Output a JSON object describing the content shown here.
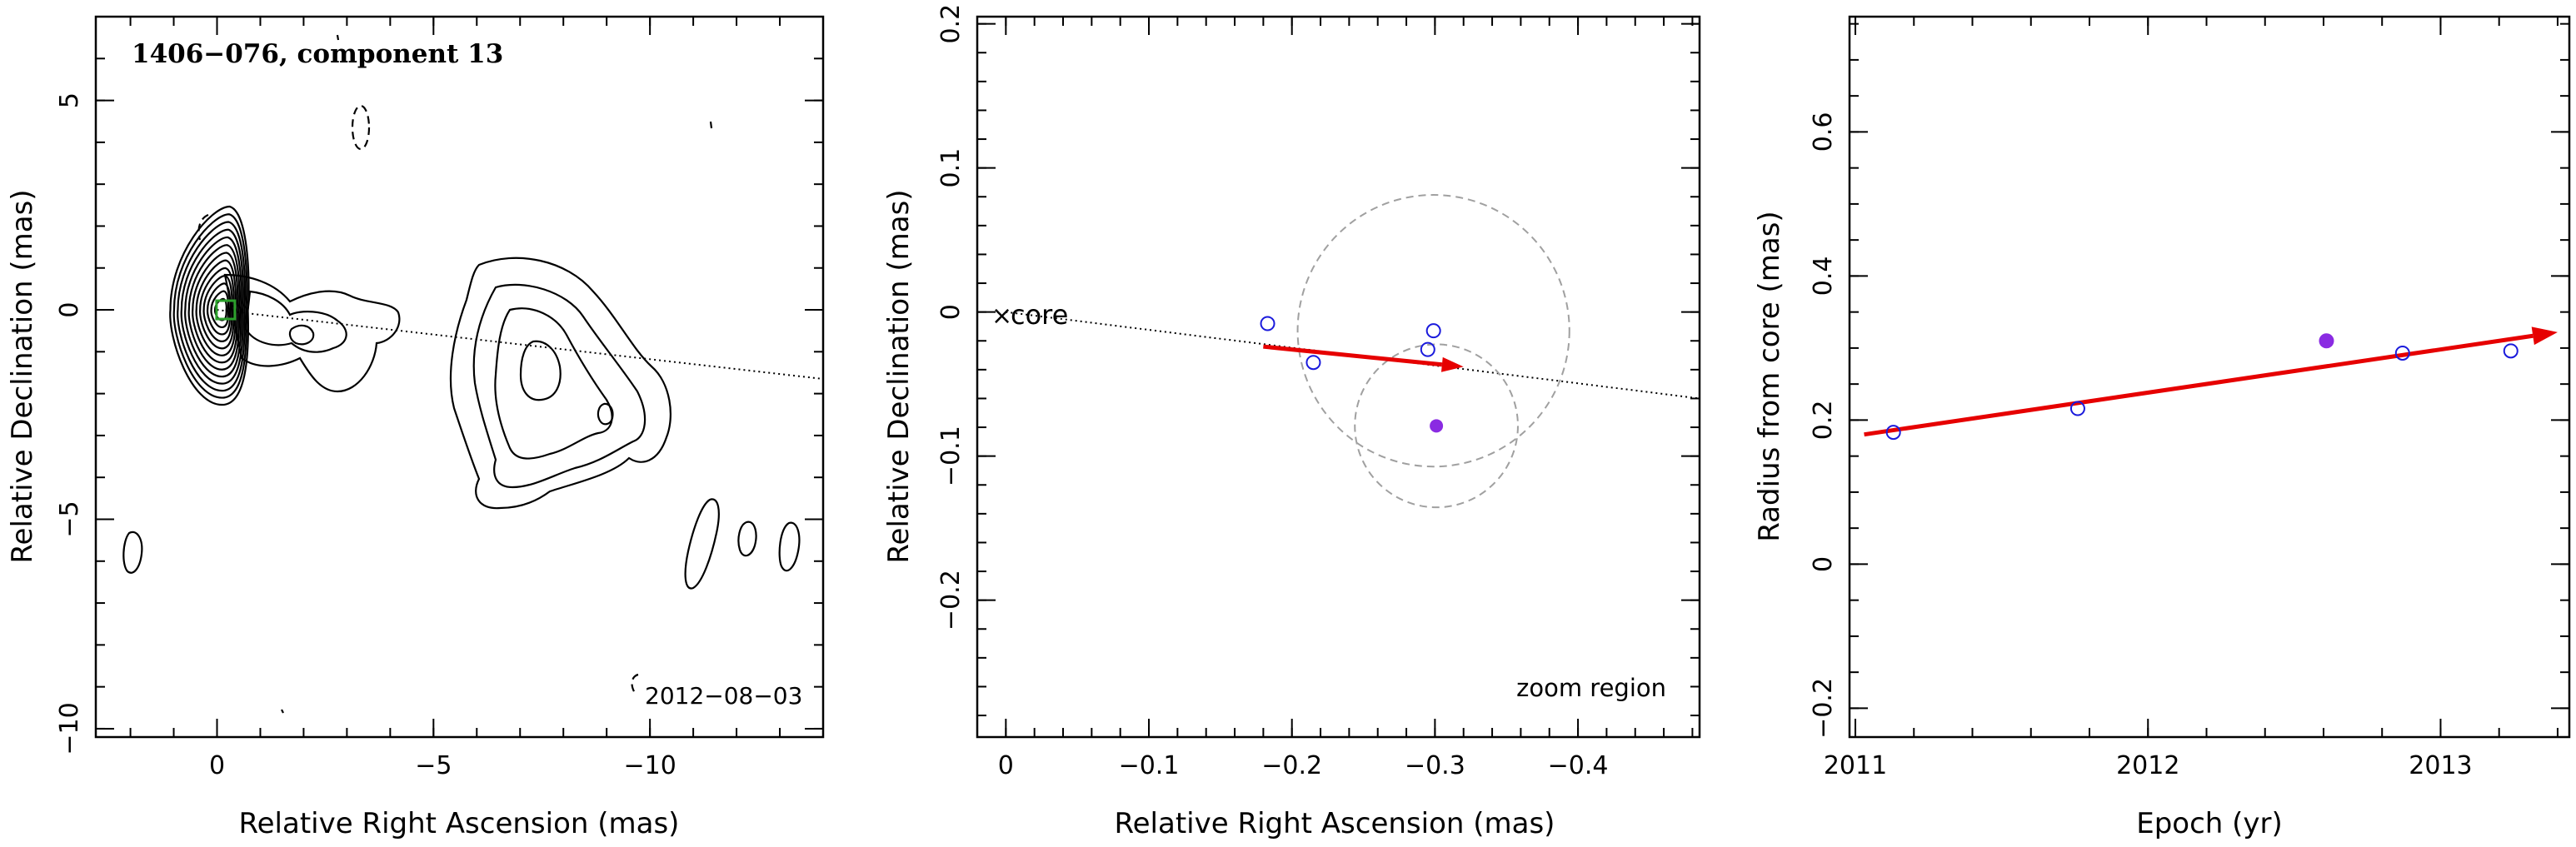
{
  "chart_data": [
    {
      "type": "contour",
      "title": "1406−076, component 13",
      "date_label": "2012−08−03",
      "xlabel": "Relative Right Ascension (mas)",
      "ylabel": "Relative Declination (mas)",
      "xlim": [
        2.8,
        -14.0
      ],
      "ylim": [
        -10.2,
        7.0
      ],
      "x_ticks": [
        0,
        -5,
        -10
      ],
      "x_tick_labels": [
        "0",
        "−5",
        "−10"
      ],
      "y_ticks": [
        5,
        0,
        -5,
        -10
      ],
      "y_tick_labels": [
        "5",
        "0",
        "−5",
        "−10"
      ],
      "core_box": {
        "x": -0.2,
        "y": 0.0
      },
      "trajectory_line": {
        "x": [
          0,
          -14.0
        ],
        "y": [
          0,
          -1.65
        ]
      },
      "colors": {
        "contour": "#000000",
        "core_box": "#2ca02c",
        "trajectory": "#000000"
      }
    },
    {
      "type": "scatter",
      "xlabel": "Relative Right Ascension (mas)",
      "ylabel": "Relative Declination (mas)",
      "annotation": "zoom region",
      "core_label": "core",
      "xlim": [
        0.02,
        -0.485
      ],
      "ylim": [
        -0.295,
        0.205
      ],
      "x_ticks": [
        0,
        -0.1,
        -0.2,
        -0.3,
        -0.4
      ],
      "x_tick_labels": [
        "0",
        "−0.1",
        "−0.2",
        "−0.3",
        "−0.4"
      ],
      "y_ticks": [
        0.2,
        0.1,
        0,
        -0.1,
        -0.2
      ],
      "y_tick_labels": [
        "0.2",
        "0.1",
        "0",
        "−0.1",
        "−0.2"
      ],
      "points_open": [
        {
          "x": -0.183,
          "y": -0.008
        },
        {
          "x": -0.215,
          "y": -0.035
        },
        {
          "x": -0.295,
          "y": -0.026
        },
        {
          "x": -0.299,
          "y": -0.013
        }
      ],
      "point_filled": {
        "x": -0.301,
        "y": -0.079
      },
      "circles": [
        {
          "x": -0.299,
          "y": -0.013,
          "r": 0.095
        },
        {
          "x": -0.301,
          "y": -0.079,
          "r": 0.057
        }
      ],
      "arrow": {
        "x": [
          -0.18,
          -0.32
        ],
        "y": [
          -0.024,
          -0.038
        ]
      },
      "trajectory_line": {
        "x": [
          0,
          -0.485
        ],
        "y": [
          0,
          -0.06
        ]
      },
      "colors": {
        "open_points": "#1a1adc",
        "filled_point": "#8a2be2",
        "arrow": "#e60000",
        "circles": "#a0a0a0"
      }
    },
    {
      "type": "scatter",
      "xlabel": "Epoch (yr)",
      "ylabel": "Radius from core (mas)",
      "xlim": [
        2010.98,
        2013.44
      ],
      "ylim": [
        -0.24,
        0.76
      ],
      "x_ticks": [
        2011,
        2012,
        2013
      ],
      "x_tick_labels": [
        "2011",
        "2012",
        "2013"
      ],
      "y_ticks": [
        -0.2,
        0,
        0.2,
        0.4,
        0.6
      ],
      "y_tick_labels": [
        "−0.2",
        "0",
        "0.2",
        "0.4",
        "0.6"
      ],
      "points_open": [
        {
          "x": 2011.13,
          "y": 0.183
        },
        {
          "x": 2011.76,
          "y": 0.216
        },
        {
          "x": 2012.87,
          "y": 0.293
        },
        {
          "x": 2013.24,
          "y": 0.296
        }
      ],
      "point_filled": {
        "x": 2012.61,
        "y": 0.31
      },
      "fit_arrow": {
        "x": [
          2011.03,
          2013.4
        ],
        "y": [
          0.18,
          0.322
        ]
      },
      "colors": {
        "open_points": "#1a1adc",
        "filled_point": "#8a2be2",
        "arrow": "#e60000"
      }
    }
  ]
}
